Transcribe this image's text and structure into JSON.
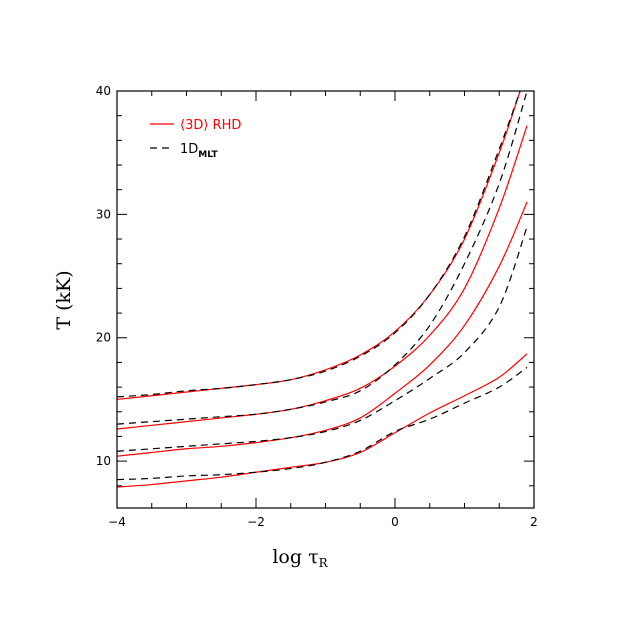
{
  "chart_data": {
    "type": "line",
    "title": "",
    "xlabel": "log τ",
    "xlabel_sub": "R",
    "ylabel": "T (kK)",
    "xlim": [
      -4,
      2
    ],
    "ylim": [
      6.2,
      40
    ],
    "x_ticks": [
      -4,
      -2,
      0,
      2
    ],
    "y_ticks": [
      10,
      20,
      30,
      40
    ],
    "x_minor_step": 0.5,
    "y_minor_step": 2,
    "grid": false,
    "legend_position": "top-left",
    "legend": [
      {
        "label": "⟨3D⟩ RHD",
        "color": "#ff0000",
        "dash": "solid"
      },
      {
        "label": "1D",
        "label_sub": "MLT",
        "color": "#000000",
        "dash": "dashed"
      }
    ],
    "series": [
      {
        "group": "3D",
        "color": "#ff0000",
        "dash": "solid",
        "x": [
          -4,
          -3.5,
          -3,
          -2.5,
          -2,
          -1.5,
          -1,
          -0.5,
          0,
          0.5,
          1,
          1.5,
          1.8
        ],
        "y": [
          15.0,
          15.3,
          15.6,
          15.9,
          16.2,
          16.6,
          17.4,
          18.6,
          20.5,
          23.5,
          28.0,
          35.0,
          40.0
        ]
      },
      {
        "group": "1D",
        "color": "#000000",
        "dash": "dashed",
        "x": [
          -4,
          -3.5,
          -3,
          -2.5,
          -2,
          -1.5,
          -1,
          -0.5,
          0,
          0.5,
          1,
          1.5,
          1.8
        ],
        "y": [
          15.2,
          15.4,
          15.7,
          15.9,
          16.2,
          16.6,
          17.3,
          18.5,
          20.4,
          23.5,
          28.2,
          35.3,
          40.0
        ]
      },
      {
        "group": "3D",
        "color": "#ff0000",
        "dash": "solid",
        "x": [
          -4,
          -3.5,
          -3,
          -2.5,
          -2,
          -1.5,
          -1,
          -0.5,
          0,
          0.5,
          1,
          1.5,
          1.9
        ],
        "y": [
          12.6,
          12.9,
          13.2,
          13.5,
          13.8,
          14.2,
          14.9,
          15.9,
          17.7,
          20.2,
          24.0,
          30.5,
          37.2
        ]
      },
      {
        "group": "1D",
        "color": "#000000",
        "dash": "dashed",
        "x": [
          -4,
          -3.5,
          -3,
          -2.5,
          -2,
          -1.5,
          -1,
          -0.5,
          0,
          0.5,
          1,
          1.5,
          1.9
        ],
        "y": [
          13.0,
          13.2,
          13.4,
          13.6,
          13.8,
          14.2,
          14.8,
          15.7,
          17.8,
          21.0,
          26.0,
          32.5,
          40.0
        ]
      },
      {
        "group": "3D",
        "color": "#ff0000",
        "dash": "solid",
        "x": [
          -4,
          -3.5,
          -3,
          -2.5,
          -2,
          -1.5,
          -1,
          -0.5,
          0,
          0.5,
          1,
          1.5,
          1.9
        ],
        "y": [
          10.4,
          10.7,
          11.0,
          11.2,
          11.5,
          11.9,
          12.5,
          13.5,
          15.5,
          17.8,
          21.0,
          25.8,
          31.0
        ]
      },
      {
        "group": "1D",
        "color": "#000000",
        "dash": "dashed",
        "x": [
          -4,
          -3.5,
          -3,
          -2.5,
          -2,
          -1.5,
          -1,
          -0.5,
          0,
          0.5,
          1,
          1.5,
          1.9
        ],
        "y": [
          10.8,
          11.0,
          11.2,
          11.4,
          11.6,
          11.9,
          12.4,
          13.3,
          14.9,
          16.7,
          18.8,
          22.5,
          29.0
        ]
      },
      {
        "group": "3D",
        "color": "#ff0000",
        "dash": "solid",
        "x": [
          -4,
          -3.5,
          -3,
          -2.5,
          -2,
          -1.5,
          -1,
          -0.5,
          0,
          0.5,
          1,
          1.5,
          1.9
        ],
        "y": [
          7.9,
          8.1,
          8.4,
          8.7,
          9.1,
          9.5,
          9.9,
          10.7,
          12.3,
          13.9,
          15.3,
          16.8,
          18.7
        ]
      },
      {
        "group": "1D",
        "color": "#000000",
        "dash": "dashed",
        "x": [
          -4,
          -3.5,
          -3,
          -2.5,
          -2,
          -1.5,
          -1,
          -0.5,
          0,
          0.5,
          1,
          1.5,
          1.9
        ],
        "y": [
          8.5,
          8.6,
          8.8,
          8.9,
          9.1,
          9.4,
          9.9,
          10.8,
          12.4,
          13.4,
          14.7,
          16.0,
          17.6
        ]
      }
    ]
  }
}
